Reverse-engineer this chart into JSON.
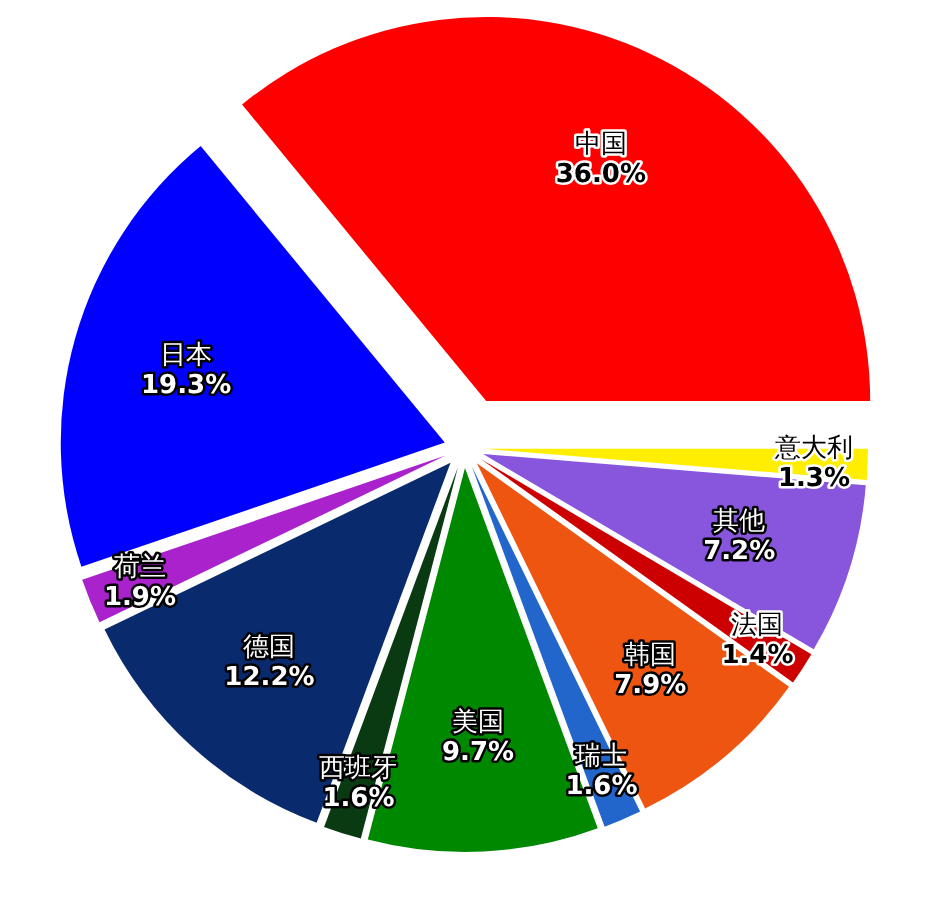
{
  "chart_data": {
    "type": "pie",
    "categories": [
      "中国",
      "日本",
      "荷兰",
      "德国",
      "西班牙",
      "美国",
      "瑞士",
      "韩国",
      "法国",
      "其他",
      "意大利"
    ],
    "values": [
      36.0,
      19.3,
      1.9,
      12.2,
      1.6,
      9.7,
      1.6,
      7.9,
      1.4,
      7.2,
      1.3
    ],
    "value_labels": [
      "36.0%",
      "19.3%",
      "1.9%",
      "12.2%",
      "1.6%",
      "9.7%",
      "1.6%",
      "7.9%",
      "1.4%",
      "7.2%",
      "1.3%"
    ],
    "colors": [
      "#ff0000",
      "#0000ff",
      "#aa22cc",
      "#0a2a6e",
      "#0a3a12",
      "#008800",
      "#2266cc",
      "#ee5511",
      "#cc0000",
      "#8855dd",
      "#ffee00"
    ],
    "legend": false
  }
}
